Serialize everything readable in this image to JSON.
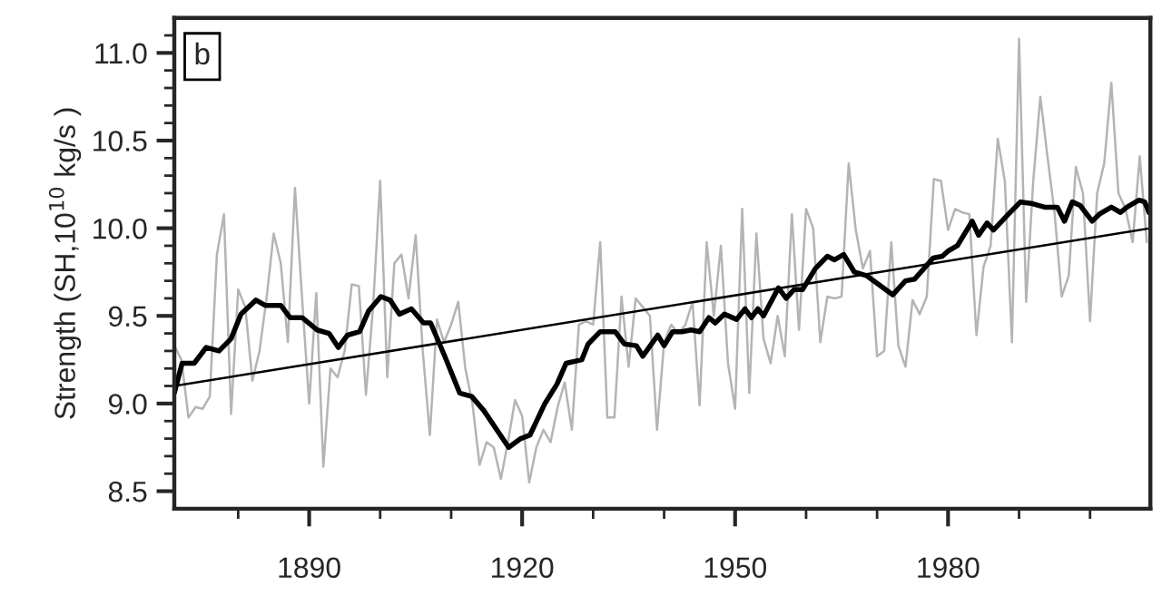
{
  "chart_data": {
    "type": "line",
    "ylabel": "Strength (SH,10$^{10}$ kg/s )",
    "annotations": [
      "b"
    ],
    "xlim": [
      1871,
      2008.5
    ],
    "ylim": [
      8.4,
      11.2
    ],
    "xticks": [
      {
        "value": 1880,
        "label": null
      },
      1890,
      {
        "value": 1900,
        "label": null
      },
      {
        "value": 1910,
        "label": null
      },
      1920,
      {
        "value": 1930,
        "label": null
      },
      {
        "value": 1940,
        "label": null
      },
      1950,
      {
        "value": 1960,
        "label": null
      },
      {
        "value": 1970,
        "label": null
      },
      1980,
      {
        "value": 1990,
        "label": null
      },
      {
        "value": 2000,
        "label": null
      }
    ],
    "yticks": [
      8.5,
      {
        "value": 8.6,
        "label": null
      },
      {
        "value": 8.7,
        "label": null
      },
      {
        "value": 8.8,
        "label": null
      },
      {
        "value": 8.9,
        "label": null
      },
      {
        "value": 9.0,
        "label": "9.0"
      },
      {
        "value": 9.1,
        "label": null
      },
      {
        "value": 9.2,
        "label": null
      },
      {
        "value": 9.3,
        "label": null
      },
      {
        "value": 9.4,
        "label": null
      },
      9.5,
      {
        "value": 9.6,
        "label": null
      },
      {
        "value": 9.7,
        "label": null
      },
      {
        "value": 9.8,
        "label": null
      },
      {
        "value": 9.9,
        "label": null
      },
      {
        "value": 10.0,
        "label": "10.0"
      },
      {
        "value": 10.1,
        "label": null
      },
      {
        "value": 10.2,
        "label": null
      },
      {
        "value": 10.3,
        "label": null
      },
      {
        "value": 10.4,
        "label": null
      },
      10.5,
      {
        "value": 10.6,
        "label": null
      },
      {
        "value": 10.7,
        "label": null
      },
      {
        "value": 10.8,
        "label": null
      },
      {
        "value": 10.9,
        "label": null
      },
      {
        "value": 11.0,
        "label": "11.0"
      },
      {
        "value": 11.1,
        "label": null
      }
    ],
    "grid": false,
    "legend": false,
    "series": [
      {
        "color": "#b4b4b4",
        "x": [
          1871,
          1872,
          1873,
          1874,
          1875,
          1876,
          1877,
          1878,
          1879,
          1880,
          1881,
          1882,
          1883,
          1884,
          1885,
          1886,
          1887,
          1888,
          1889,
          1890,
          1891,
          1892,
          1893,
          1894,
          1895,
          1896,
          1897,
          1898,
          1899,
          1900,
          1901,
          1902,
          1903,
          1904,
          1905,
          1906,
          1907,
          1908,
          1909,
          1910,
          1911,
          1912,
          1913,
          1914,
          1915,
          1916,
          1917,
          1918,
          1919,
          1920,
          1921,
          1922,
          1923,
          1924,
          1925,
          1926,
          1927,
          1928,
          1929,
          1930,
          1931,
          1932,
          1933,
          1934,
          1935,
          1936,
          1937,
          1938,
          1939,
          1940,
          1941,
          1942,
          1943,
          1944,
          1945,
          1946,
          1947,
          1948,
          1949,
          1950,
          1951,
          1952,
          1953,
          1954,
          1955,
          1956,
          1957,
          1958,
          1959,
          1960,
          1961,
          1962,
          1963,
          1964,
          1965,
          1966,
          1967,
          1968,
          1969,
          1970,
          1971,
          1972,
          1973,
          1974,
          1975,
          1976,
          1977,
          1978,
          1979,
          1980,
          1981,
          1982,
          1983,
          1984,
          1985,
          1986,
          1987,
          1988,
          1989,
          1990,
          1991,
          1992,
          1993,
          1994,
          1995,
          1996,
          1997,
          1998,
          1999,
          2000,
          2001,
          2002,
          2003,
          2004,
          2005,
          2006,
          2007,
          2008
        ],
        "values": [
          9.33,
          9.25,
          8.92,
          8.98,
          8.97,
          9.04,
          9.85,
          10.08,
          8.94,
          9.65,
          9.55,
          9.13,
          9.3,
          9.6,
          9.97,
          9.8,
          9.35,
          10.23,
          9.6,
          9.0,
          9.63,
          8.64,
          9.2,
          9.15,
          9.3,
          9.68,
          9.67,
          9.05,
          9.55,
          10.27,
          9.15,
          9.8,
          9.85,
          9.6,
          9.96,
          9.3,
          8.82,
          9.48,
          9.35,
          9.45,
          9.58,
          9.2,
          9.0,
          8.65,
          8.78,
          8.75,
          8.57,
          8.78,
          9.02,
          8.93,
          8.55,
          8.75,
          8.85,
          8.78,
          8.98,
          9.12,
          8.85,
          9.45,
          9.47,
          9.45,
          9.92,
          8.92,
          8.92,
          9.61,
          9.21,
          9.6,
          9.55,
          9.5,
          8.85,
          9.35,
          9.45,
          9.4,
          9.45,
          9.58,
          8.99,
          9.92,
          9.5,
          9.9,
          9.23,
          8.97,
          10.11,
          9.06,
          9.97,
          9.37,
          9.23,
          9.5,
          9.27,
          10.08,
          9.42,
          10.11,
          10.0,
          9.35,
          9.61,
          9.6,
          9.61,
          10.37,
          9.99,
          9.77,
          9.87,
          9.27,
          9.3,
          9.92,
          9.33,
          9.21,
          9.59,
          9.51,
          9.61,
          10.28,
          10.27,
          9.99,
          10.11,
          10.09,
          10.08,
          9.39,
          9.78,
          9.9,
          10.51,
          10.27,
          9.35,
          11.08,
          9.58,
          10.27,
          10.75,
          10.41,
          10.09,
          9.61,
          9.73,
          10.35,
          10.2,
          9.47,
          10.2,
          10.37,
          10.83,
          10.2,
          10.11,
          9.92,
          10.41,
          9.92
        ]
      },
      {
        "color": "#000000",
        "x": [
          1871,
          1872.1,
          1873.8,
          1875.5,
          1877.3,
          1879,
          1880.4,
          1882.5,
          1883.8,
          1886,
          1887.3,
          1889,
          1891.1,
          1892.8,
          1894.1,
          1895.4,
          1897.1,
          1898.4,
          1900.1,
          1901.4,
          1902.7,
          1904.4,
          1906.1,
          1907.1,
          1909.1,
          1911.2,
          1912.9,
          1914.6,
          1918.1,
          1919.8,
          1921.1,
          1923.2,
          1924.9,
          1926.2,
          1928.4,
          1929.3,
          1931,
          1933.1,
          1934.4,
          1936.1,
          1937,
          1939.1,
          1940,
          1941.2,
          1942.5,
          1943.8,
          1945,
          1946.3,
          1947.2,
          1948.5,
          1950.2,
          1951.4,
          1952.3,
          1953.2,
          1954,
          1956.1,
          1957.2,
          1958.3,
          1959.5,
          1961.3,
          1963,
          1964,
          1965.3,
          1966.8,
          1968.5,
          1970.2,
          1972.2,
          1974,
          1975.3,
          1976.6,
          1977.9,
          1979.2,
          1980,
          1981.3,
          1983.4,
          1984.3,
          1985.5,
          1986.4,
          1988.5,
          1990.2,
          1991.9,
          1993.6,
          1995.4,
          1996.4,
          1997.5,
          1998.6,
          2000.3,
          2001.3,
          2003,
          2004.3,
          2005.2,
          2006.9,
          2007.7,
          2008.3
        ],
        "values": [
          9.06,
          9.23,
          9.23,
          9.32,
          9.3,
          9.37,
          9.51,
          9.59,
          9.56,
          9.56,
          9.49,
          9.49,
          9.42,
          9.4,
          9.32,
          9.39,
          9.41,
          9.53,
          9.61,
          9.59,
          9.51,
          9.54,
          9.46,
          9.46,
          9.27,
          9.06,
          9.04,
          8.96,
          8.75,
          8.8,
          8.82,
          9.0,
          9.11,
          9.23,
          9.25,
          9.34,
          9.41,
          9.41,
          9.34,
          9.33,
          9.27,
          9.39,
          9.33,
          9.41,
          9.41,
          9.42,
          9.41,
          9.49,
          9.46,
          9.51,
          9.48,
          9.54,
          9.49,
          9.54,
          9.5,
          9.66,
          9.6,
          9.65,
          9.65,
          9.77,
          9.84,
          9.82,
          9.85,
          9.75,
          9.73,
          9.68,
          9.62,
          9.7,
          9.71,
          9.77,
          9.83,
          9.84,
          9.87,
          9.9,
          10.04,
          9.96,
          10.03,
          9.99,
          10.08,
          10.15,
          10.14,
          10.12,
          10.12,
          10.04,
          10.15,
          10.13,
          10.04,
          10.08,
          10.12,
          10.09,
          10.12,
          10.16,
          10.15,
          10.09
        ]
      },
      {
        "color": "#000000",
        "x": [
          1871,
          2008.5
        ],
        "values": [
          9.1,
          10.0
        ]
      }
    ]
  }
}
